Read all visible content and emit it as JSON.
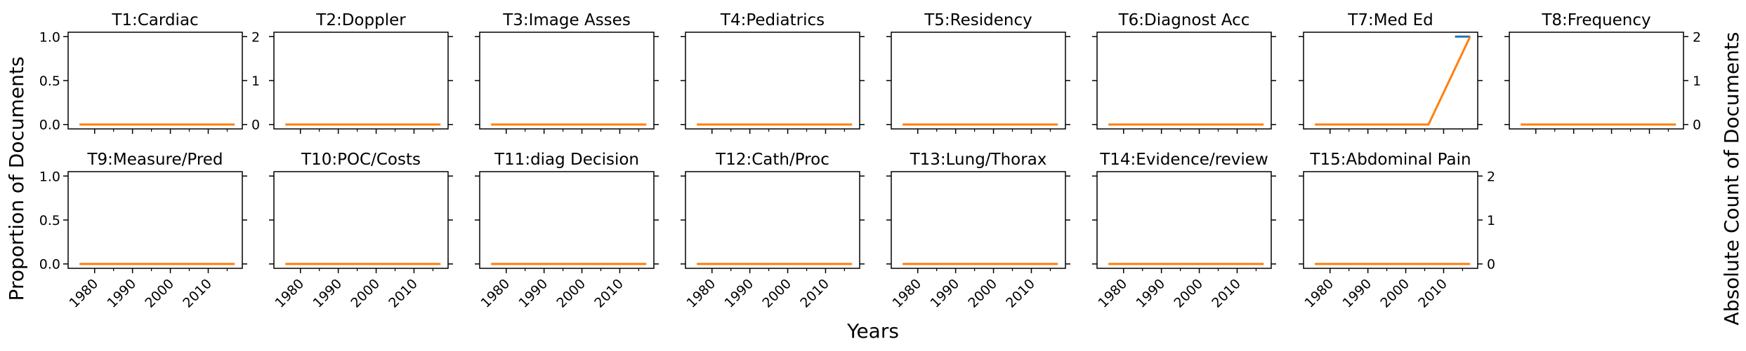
{
  "figure": {
    "xlabel": "Years",
    "ylabel_left": "Proportion of Documents",
    "ylabel_right": "Absolute Count of Documents"
  },
  "colors": {
    "proportion": "#1f77b4",
    "count": "#ff7f0e"
  },
  "chart_data": [
    {
      "type": "line",
      "title": "T1:Cardiac",
      "x": [
        1976,
        2006,
        2017
      ],
      "series": [
        {
          "axis": "left",
          "values": [
            null,
            null,
            null
          ]
        },
        {
          "axis": "right",
          "values": [
            0,
            0,
            0
          ]
        }
      ],
      "xticks": [
        1980,
        1990,
        2000,
        2010
      ],
      "xlim": [
        1973,
        2019
      ],
      "ylim_left": [
        -0.05,
        1.05
      ],
      "ylim_right": [
        -0.1,
        2.1
      ],
      "yticks_left": [
        "0.0",
        "0.5",
        "1.0"
      ],
      "yticks_right": [
        "0",
        "1",
        "2"
      ]
    },
    {
      "type": "line",
      "title": "T2:Doppler",
      "x": [
        1976,
        2006,
        2017
      ],
      "series": [
        {
          "axis": "left",
          "values": [
            null,
            null,
            null
          ]
        },
        {
          "axis": "right",
          "values": [
            0,
            0,
            0
          ]
        }
      ],
      "xticks": [
        1980,
        1990,
        2000,
        2010
      ],
      "xlim": [
        1973,
        2019
      ],
      "ylim_left": [
        -0.05,
        1.05
      ],
      "ylim_right": [
        -0.1,
        2.1
      ]
    },
    {
      "type": "line",
      "title": "T3:Image Asses",
      "x": [
        1976,
        2006,
        2017
      ],
      "series": [
        {
          "axis": "left",
          "values": [
            null,
            null,
            null
          ]
        },
        {
          "axis": "right",
          "values": [
            0,
            0,
            0
          ]
        }
      ],
      "xticks": [
        1980,
        1990,
        2000,
        2010
      ],
      "xlim": [
        1973,
        2019
      ],
      "ylim_left": [
        -0.05,
        1.05
      ],
      "ylim_right": [
        -0.1,
        2.1
      ]
    },
    {
      "type": "line",
      "title": "T4:Pediatrics",
      "x": [
        1976,
        2006,
        2017
      ],
      "series": [
        {
          "axis": "left",
          "values": [
            null,
            null,
            null
          ]
        },
        {
          "axis": "right",
          "values": [
            0,
            0,
            0
          ]
        }
      ],
      "xticks": [
        1980,
        1990,
        2000,
        2010
      ],
      "xlim": [
        1973,
        2019
      ],
      "ylim_left": [
        -0.05,
        1.05
      ],
      "ylim_right": [
        -0.1,
        2.1
      ]
    },
    {
      "type": "line",
      "title": "T5:Residency",
      "x": [
        1976,
        2006,
        2017
      ],
      "series": [
        {
          "axis": "left",
          "values": [
            null,
            null,
            null
          ]
        },
        {
          "axis": "right",
          "values": [
            0,
            0,
            0
          ]
        }
      ],
      "xticks": [
        1980,
        1990,
        2000,
        2010
      ],
      "xlim": [
        1973,
        2019
      ],
      "ylim_left": [
        -0.05,
        1.05
      ],
      "ylim_right": [
        -0.1,
        2.1
      ]
    },
    {
      "type": "line",
      "title": "T6:Diagnost Acc",
      "x": [
        1976,
        2006,
        2017
      ],
      "series": [
        {
          "axis": "left",
          "values": [
            null,
            null,
            null
          ]
        },
        {
          "axis": "right",
          "values": [
            0,
            0,
            0
          ]
        }
      ],
      "xticks": [
        1980,
        1990,
        2000,
        2010
      ],
      "xlim": [
        1973,
        2019
      ],
      "ylim_left": [
        -0.05,
        1.05
      ],
      "ylim_right": [
        -0.1,
        2.1
      ]
    },
    {
      "type": "line",
      "title": "T7:Med Ed",
      "x": [
        1976,
        2006,
        2017
      ],
      "series": [
        {
          "axis": "left",
          "values": [
            null,
            null,
            null
          ],
          "segment": {
            "x": [
              2013,
              2017
            ],
            "values": [
              1.0,
              1.0
            ]
          }
        },
        {
          "axis": "right",
          "values": [
            0,
            0,
            2
          ]
        }
      ],
      "xticks": [
        1980,
        1990,
        2000,
        2010
      ],
      "xlim": [
        1973,
        2019
      ],
      "ylim_left": [
        -0.05,
        1.05
      ],
      "ylim_right": [
        -0.1,
        2.1
      ]
    },
    {
      "type": "line",
      "title": "T8:Frequency",
      "x": [
        1976,
        2006,
        2017
      ],
      "series": [
        {
          "axis": "left",
          "values": [
            null,
            null,
            null
          ]
        },
        {
          "axis": "right",
          "values": [
            0,
            0,
            0
          ]
        }
      ],
      "xticks": [
        1980,
        1990,
        2000,
        2010
      ],
      "xlim": [
        1973,
        2019
      ],
      "ylim_left": [
        -0.05,
        1.05
      ],
      "ylim_right": [
        -0.1,
        2.1
      ],
      "yticks_right": [
        "0",
        "1",
        "2"
      ]
    },
    {
      "type": "line",
      "title": "T9:Measure/Pred",
      "x": [
        1976,
        2006,
        2017
      ],
      "series": [
        {
          "axis": "left",
          "values": [
            null,
            null,
            null
          ]
        },
        {
          "axis": "right",
          "values": [
            0,
            0,
            0
          ]
        }
      ],
      "xticks": [
        1980,
        1990,
        2000,
        2010
      ],
      "xlim": [
        1973,
        2019
      ],
      "ylim_left": [
        -0.05,
        1.05
      ],
      "ylim_right": [
        -0.1,
        2.1
      ],
      "yticks_left": [
        "0.0",
        "0.5",
        "1.0"
      ]
    },
    {
      "type": "line",
      "title": "T10:POC/Costs",
      "x": [
        1976,
        2006,
        2017
      ],
      "series": [
        {
          "axis": "left",
          "values": [
            null,
            null,
            null
          ]
        },
        {
          "axis": "right",
          "values": [
            0,
            0,
            0
          ]
        }
      ],
      "xticks": [
        1980,
        1990,
        2000,
        2010
      ],
      "xlim": [
        1973,
        2019
      ],
      "ylim_left": [
        -0.05,
        1.05
      ],
      "ylim_right": [
        -0.1,
        2.1
      ]
    },
    {
      "type": "line",
      "title": "T11:diag Decision",
      "x": [
        1976,
        2006,
        2017
      ],
      "series": [
        {
          "axis": "left",
          "values": [
            null,
            null,
            null
          ]
        },
        {
          "axis": "right",
          "values": [
            0,
            0,
            0
          ]
        }
      ],
      "xticks": [
        1980,
        1990,
        2000,
        2010
      ],
      "xlim": [
        1973,
        2019
      ],
      "ylim_left": [
        -0.05,
        1.05
      ],
      "ylim_right": [
        -0.1,
        2.1
      ]
    },
    {
      "type": "line",
      "title": "T12:Cath/Proc",
      "x": [
        1976,
        2006,
        2017
      ],
      "series": [
        {
          "axis": "left",
          "values": [
            null,
            null,
            null
          ]
        },
        {
          "axis": "right",
          "values": [
            0,
            0,
            0
          ]
        }
      ],
      "xticks": [
        1980,
        1990,
        2000,
        2010
      ],
      "xlim": [
        1973,
        2019
      ],
      "ylim_left": [
        -0.05,
        1.05
      ],
      "ylim_right": [
        -0.1,
        2.1
      ]
    },
    {
      "type": "line",
      "title": "T13:Lung/Thorax",
      "x": [
        1976,
        2006,
        2017
      ],
      "series": [
        {
          "axis": "left",
          "values": [
            null,
            null,
            null
          ]
        },
        {
          "axis": "right",
          "values": [
            0,
            0,
            0
          ]
        }
      ],
      "xticks": [
        1980,
        1990,
        2000,
        2010
      ],
      "xlim": [
        1973,
        2019
      ],
      "ylim_left": [
        -0.05,
        1.05
      ],
      "ylim_right": [
        -0.1,
        2.1
      ]
    },
    {
      "type": "line",
      "title": "T14:Evidence/review",
      "x": [
        1976,
        2006,
        2017
      ],
      "series": [
        {
          "axis": "left",
          "values": [
            null,
            null,
            null
          ]
        },
        {
          "axis": "right",
          "values": [
            0,
            0,
            0
          ]
        }
      ],
      "xticks": [
        1980,
        1990,
        2000,
        2010
      ],
      "xlim": [
        1973,
        2019
      ],
      "ylim_left": [
        -0.05,
        1.05
      ],
      "ylim_right": [
        -0.1,
        2.1
      ]
    },
    {
      "type": "line",
      "title": "T15:Abdominal Pain",
      "x": [
        1976,
        2006,
        2017
      ],
      "series": [
        {
          "axis": "left",
          "values": [
            null,
            null,
            null
          ]
        },
        {
          "axis": "right",
          "values": [
            0,
            0,
            0
          ]
        }
      ],
      "xticks": [
        1980,
        1990,
        2000,
        2010
      ],
      "xlim": [
        1973,
        2019
      ],
      "ylim_left": [
        -0.05,
        1.05
      ],
      "ylim_right": [
        -0.1,
        2.1
      ],
      "yticks_right": [
        "0",
        "1",
        "2"
      ]
    }
  ]
}
